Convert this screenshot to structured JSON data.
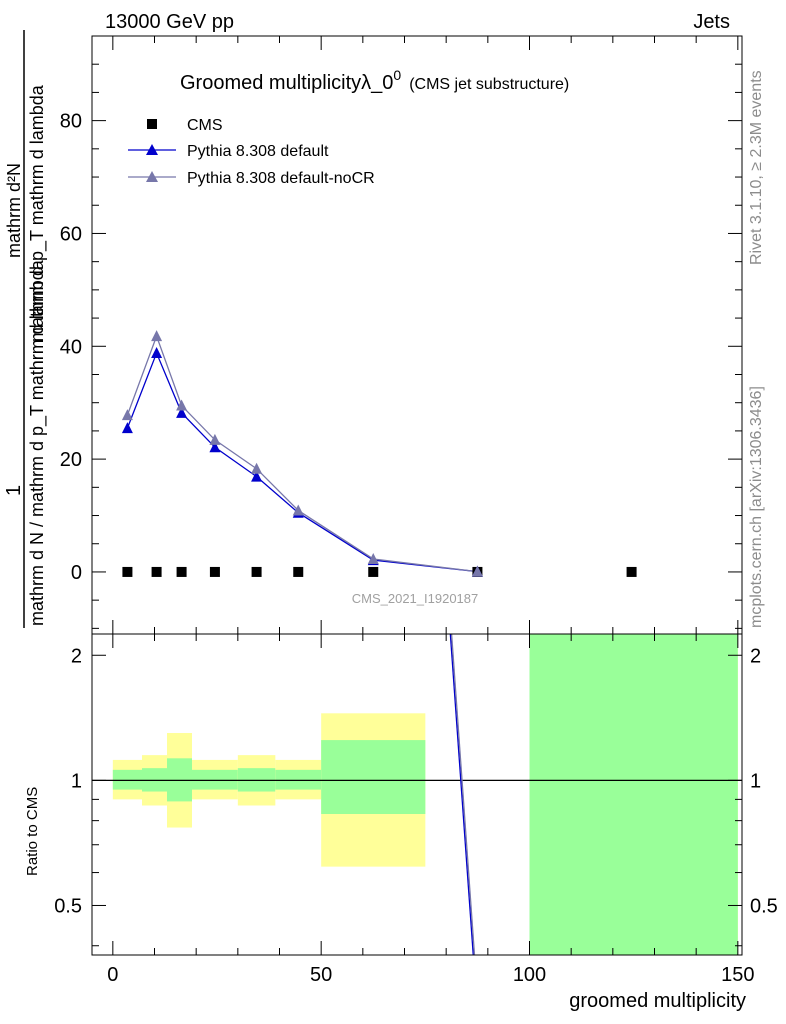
{
  "header": {
    "left": "13000 GeV pp",
    "right": "Jets"
  },
  "side_text": {
    "top": "Rivet 3.1.10, ≥ 2.3M events",
    "bottom": "mcplots.cern.ch [arXiv:1306.3436]"
  },
  "chart_data": [
    {
      "type": "line",
      "title": "Groomed multiplicityλ_0",
      "title_sup": "0",
      "subtitle": "(CMS jet substructure)",
      "watermark": "CMS_2021_I1920187",
      "ylabel_numerator": "1",
      "ylabel_denominator": "mathrm d N / mathrm d p_T mathrm d lambda",
      "ylabel_right": "mathrm d²N",
      "ylabel_right_denominator": "mathrm d p_T mathrm d lambda",
      "xlim": [
        -5,
        151
      ],
      "ylim": [
        -11,
        95
      ],
      "yticks": [
        0,
        20,
        40,
        60,
        80
      ],
      "grid": false,
      "legend_position": "top-left",
      "series": [
        {
          "name": "CMS",
          "marker": "square",
          "color": "#000000",
          "x": [
            3.5,
            10.5,
            16.5,
            24.5,
            34.5,
            44.5,
            62.5,
            87.5,
            124.5
          ],
          "values": [
            0,
            0,
            0,
            0,
            0,
            0,
            0,
            0,
            0
          ]
        },
        {
          "name": "Pythia 8.308 default",
          "marker": "triangle",
          "color": "#0000cc",
          "x": [
            3.5,
            10.5,
            16.5,
            24.5,
            34.5,
            44.5,
            62.5,
            87.5
          ],
          "values": [
            25.5,
            38.8,
            28.2,
            22.1,
            16.9,
            10.5,
            2.1,
            0.05
          ]
        },
        {
          "name": "Pythia 8.308 default-noCR",
          "marker": "triangle",
          "color": "#7777aa",
          "x": [
            3.5,
            10.5,
            16.5,
            24.5,
            34.5,
            44.5,
            62.5,
            87.5
          ],
          "values": [
            27.8,
            41.8,
            29.5,
            23.4,
            18.3,
            10.9,
            2.3,
            0.06
          ]
        }
      ]
    },
    {
      "type": "line",
      "ylabel": "Ratio to CMS",
      "xlabel": "groomed multiplicity",
      "xlim": [
        -5,
        151
      ],
      "ylim": [
        0.38,
        2.25
      ],
      "yticks": [
        0.5,
        1,
        2
      ],
      "xticks": [
        0,
        50,
        100,
        150
      ],
      "reference": 1,
      "bands": [
        {
          "x": [
            0,
            7
          ],
          "yellow": [
            0.9,
            1.12
          ],
          "green": [
            0.95,
            1.06
          ]
        },
        {
          "x": [
            7,
            13
          ],
          "yellow": [
            0.87,
            1.15
          ],
          "green": [
            0.94,
            1.07
          ]
        },
        {
          "x": [
            13,
            19
          ],
          "yellow": [
            0.77,
            1.3
          ],
          "green": [
            0.89,
            1.13
          ]
        },
        {
          "x": [
            19,
            30
          ],
          "yellow": [
            0.9,
            1.12
          ],
          "green": [
            0.95,
            1.06
          ]
        },
        {
          "x": [
            30,
            39
          ],
          "yellow": [
            0.87,
            1.15
          ],
          "green": [
            0.94,
            1.07
          ]
        },
        {
          "x": [
            39,
            50
          ],
          "yellow": [
            0.9,
            1.12
          ],
          "green": [
            0.95,
            1.06
          ]
        },
        {
          "x": [
            50,
            75
          ],
          "yellow": [
            0.62,
            1.45
          ],
          "green": [
            0.83,
            1.25
          ]
        },
        {
          "x": [
            100,
            150
          ],
          "yellow": [
            0.38,
            2.25
          ],
          "green": [
            0.38,
            2.25
          ]
        }
      ],
      "series": [
        {
          "name": "Pythia 8.308 default",
          "color": "#0000cc",
          "x": [
            81,
            86.5
          ],
          "values": [
            2.25,
            0.38
          ]
        },
        {
          "name": "Pythia 8.308 default-noCR",
          "color": "#7777aa",
          "x": [
            81.3,
            86.8
          ],
          "values": [
            2.25,
            0.38
          ]
        }
      ]
    }
  ]
}
